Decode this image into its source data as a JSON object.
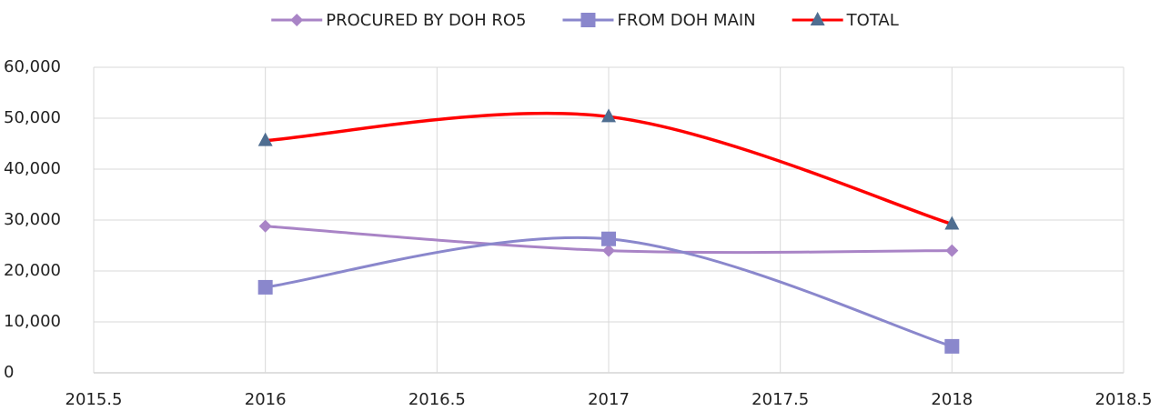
{
  "chart_data": {
    "type": "line",
    "x": [
      2016,
      2017,
      2018
    ],
    "series": [
      {
        "name": "PROCURED BY DOH RO5",
        "color": "#a984c6",
        "marker": "diamond",
        "values": [
          28800,
          24000,
          24000
        ]
      },
      {
        "name": "FROM DOH MAIN",
        "color": "#8a87cc",
        "marker": "square",
        "values": [
          16800,
          26300,
          5200
        ]
      },
      {
        "name": "TOTAL",
        "color": "#ff0000",
        "marker": "triangle",
        "marker_color": "#4f6e91",
        "values": [
          45600,
          50300,
          29200
        ]
      }
    ],
    "xlim": [
      2015.5,
      2018.5
    ],
    "xticks": [
      2015.5,
      2016,
      2016.5,
      2017,
      2017.5,
      2018,
      2018.5
    ],
    "ylim": [
      0,
      60000
    ],
    "yticks": [
      0,
      {
        "value": 10000,
        "label": "10,000"
      },
      {
        "value": 20000,
        "label": "20,000"
      },
      {
        "value": 30000,
        "label": "30,000"
      },
      {
        "value": 40000,
        "label": "40,000"
      },
      {
        "value": 50000,
        "label": "50,000"
      },
      {
        "value": 60000,
        "label": "60,000"
      }
    ],
    "grid": true,
    "smooth": true,
    "legend": "top"
  }
}
